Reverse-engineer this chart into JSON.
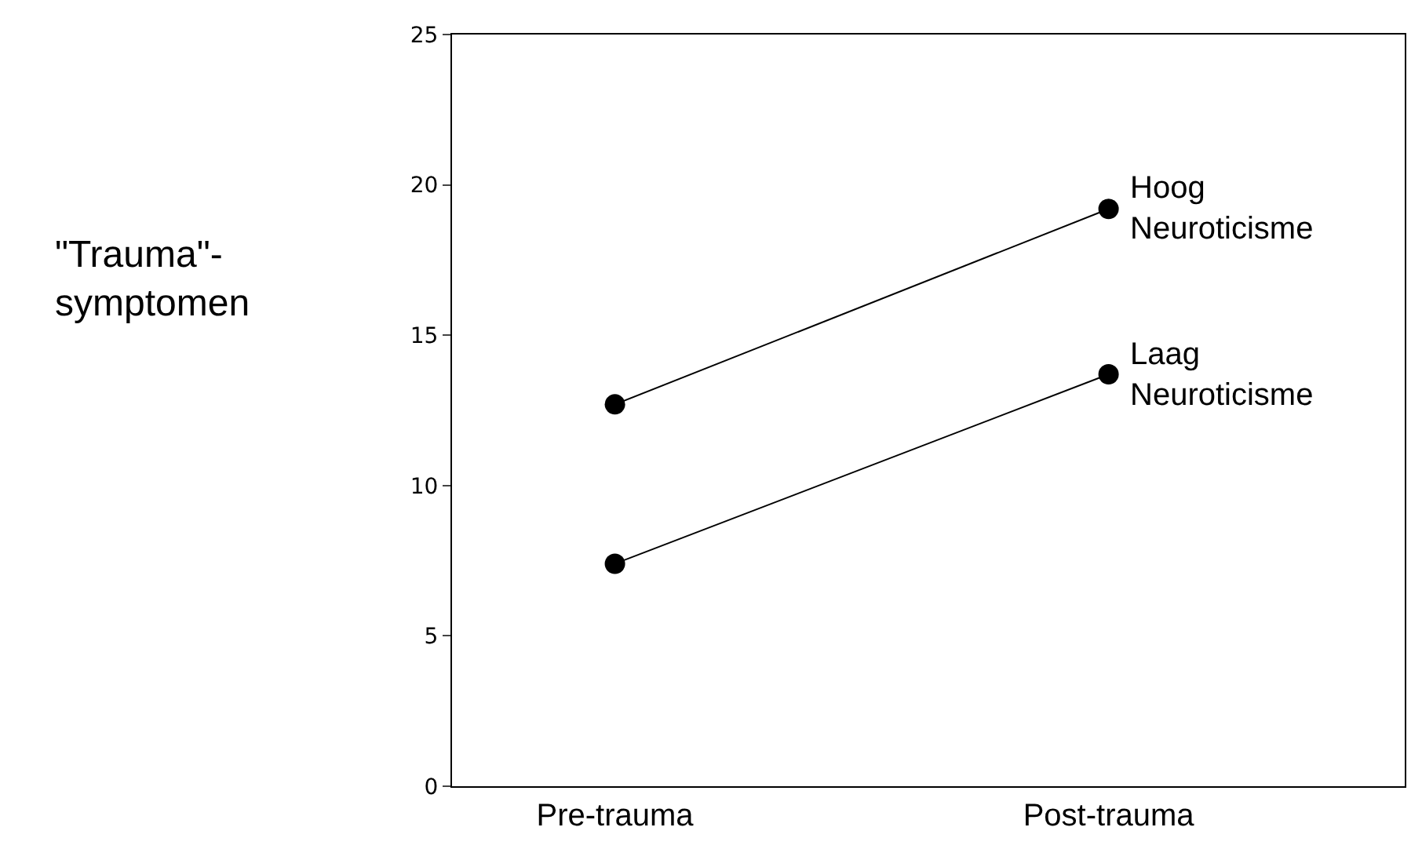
{
  "chart_data": {
    "type": "line",
    "annotations": [
      "\"Trauma\"-\nsymptomen"
    ],
    "categories": [
      "Pre-trauma",
      "Post-trauma"
    ],
    "series": [
      {
        "name": "Hoog\nNeuroticisme",
        "color": "#000000",
        "values": [
          12.7,
          19.2
        ]
      },
      {
        "name": "Laag\nNeuroticisme",
        "color": "#000000",
        "values": [
          7.4,
          13.7
        ]
      }
    ],
    "ylim": [
      0,
      25
    ],
    "yticks": [
      0,
      5,
      10,
      15,
      20,
      25
    ],
    "marker": "circle",
    "line_style": "solid",
    "legend": false
  }
}
